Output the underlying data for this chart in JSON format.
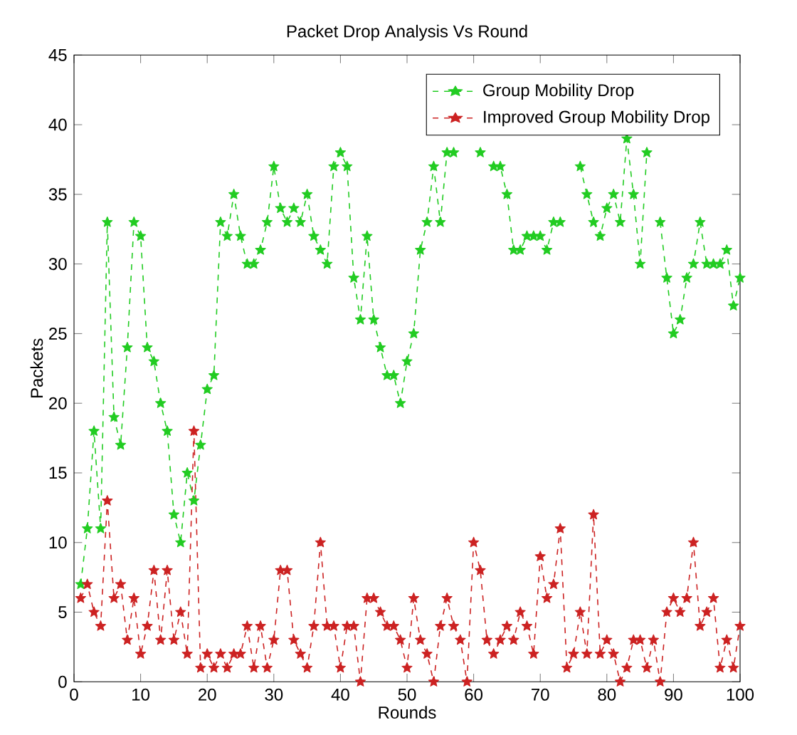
{
  "chart_data": {
    "type": "line",
    "title": "Packet Drop Analysis Vs Round",
    "xlabel": "Rounds",
    "ylabel": "Packets",
    "x": [
      1,
      2,
      3,
      4,
      5,
      6,
      7,
      8,
      9,
      10,
      11,
      12,
      13,
      14,
      15,
      16,
      17,
      18,
      19,
      20,
      21,
      22,
      23,
      24,
      25,
      26,
      27,
      28,
      29,
      30,
      31,
      32,
      33,
      34,
      35,
      36,
      37,
      38,
      39,
      40,
      41,
      42,
      43,
      44,
      45,
      46,
      47,
      48,
      49,
      50,
      51,
      52,
      53,
      54,
      55,
      56,
      57,
      58,
      59,
      60,
      61,
      62,
      63,
      64,
      65,
      66,
      67,
      68,
      69,
      70,
      71,
      72,
      73,
      74,
      75,
      76,
      77,
      78,
      79,
      80,
      81,
      82,
      83,
      84,
      85,
      86,
      87,
      88,
      89,
      90,
      91,
      92,
      93,
      94,
      95,
      96,
      97,
      98,
      99,
      100
    ],
    "series": [
      {
        "name": "Group Mobility Drop",
        "color": "#22cc22",
        "values": [
          7,
          11,
          18,
          11,
          33,
          19,
          17,
          24,
          33,
          32,
          24,
          23,
          20,
          18,
          12,
          10,
          15,
          13,
          17,
          21,
          22,
          33,
          32,
          35,
          32,
          30,
          30,
          31,
          33,
          37,
          34,
          33,
          34,
          33,
          35,
          32,
          31,
          30,
          37,
          38,
          37,
          29,
          26,
          32,
          26,
          24,
          22,
          22,
          20,
          23,
          25,
          31,
          33,
          37,
          33,
          38,
          38,
          null,
          null,
          null,
          38,
          null,
          37,
          37,
          35,
          31,
          31,
          32,
          32,
          32,
          31,
          33,
          33,
          null,
          null,
          37,
          35,
          33,
          32,
          34,
          35,
          33,
          39,
          35,
          30,
          38,
          null,
          33,
          29,
          25,
          26,
          29,
          30,
          33,
          30,
          30,
          30,
          31,
          27,
          29
        ]
      },
      {
        "name": "Improved Group Mobility Drop",
        "color": "#cc2222",
        "values": [
          6,
          7,
          5,
          4,
          13,
          6,
          7,
          3,
          6,
          2,
          4,
          8,
          3,
          8,
          3,
          5,
          2,
          18,
          1,
          2,
          1,
          2,
          1,
          2,
          2,
          4,
          1,
          4,
          1,
          3,
          8,
          8,
          3,
          2,
          1,
          4,
          10,
          4,
          4,
          1,
          4,
          4,
          0,
          6,
          6,
          5,
          4,
          4,
          3,
          1,
          6,
          3,
          2,
          0,
          4,
          6,
          4,
          3,
          0,
          10,
          8,
          3,
          2,
          3,
          4,
          3,
          5,
          4,
          2,
          9,
          6,
          7,
          11,
          1,
          2,
          5,
          2,
          12,
          2,
          3,
          2,
          0,
          1,
          3,
          3,
          1,
          3,
          0,
          5,
          6,
          5,
          6,
          10,
          4,
          5,
          6,
          1,
          3,
          1,
          4
        ]
      }
    ],
    "xlim": [
      0,
      100
    ],
    "ylim": [
      0,
      45
    ],
    "xticks": [
      0,
      10,
      20,
      30,
      40,
      50,
      60,
      70,
      80,
      90,
      100
    ],
    "yticks": [
      0,
      5,
      10,
      15,
      20,
      25,
      30,
      35,
      40,
      45
    ],
    "grid": false,
    "legend": "top right",
    "marker": "star",
    "line_style": "dashed"
  }
}
